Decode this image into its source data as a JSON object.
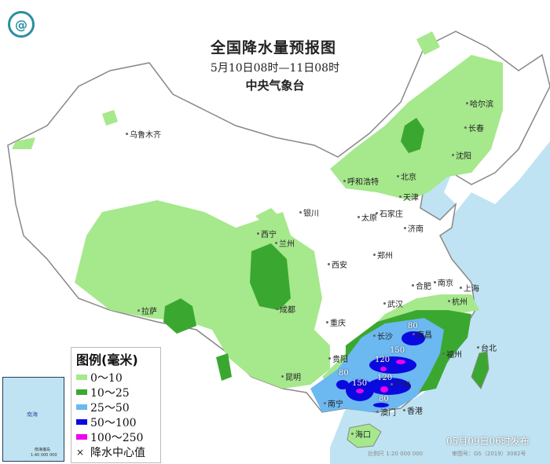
{
  "header": {
    "title": "全国降水量预报图",
    "period": "5月10日08时—11日08时",
    "agency": "中央气象台"
  },
  "legend": {
    "title": "图例(毫米)",
    "items": [
      {
        "label": "0～10",
        "color": "#a6e88c"
      },
      {
        "label": "10～25",
        "color": "#3aa830"
      },
      {
        "label": "25～50",
        "color": "#6cb8f0"
      },
      {
        "label": "50～100",
        "color": "#0a0ae0"
      },
      {
        "label": "100～250",
        "color": "#f000f0"
      }
    ],
    "center_mark": "×",
    "center_label": "降水中心值"
  },
  "cities": [
    "乌鲁木齐",
    "哈尔滨",
    "长春",
    "沈阳",
    "呼和浩特",
    "北京",
    "天津",
    "石家庄",
    "太原",
    "济南",
    "郑州",
    "西安",
    "银川",
    "西宁",
    "兰州",
    "拉萨",
    "成都",
    "重庆",
    "贵阳",
    "昆明",
    "武汉",
    "合肥",
    "南京",
    "上海",
    "杭州",
    "南昌",
    "长沙",
    "福州",
    "台北",
    "广州",
    "香港",
    "澳门",
    "南宁",
    "海口"
  ],
  "center_values": [
    "80",
    "150",
    "120",
    "80",
    "150",
    "120",
    "80"
  ],
  "inset": {
    "label": "南海诸岛",
    "scale": "1:40 000 000",
    "sea": "南海"
  },
  "footer": {
    "issued": "05月09日06时发布",
    "scale": "比例尺 1:20 000 000",
    "review": "审图号：GS（2019）3082号"
  },
  "colors": {
    "sea": "#bfe3f2",
    "land": "#ffffff",
    "border": "#888888"
  }
}
